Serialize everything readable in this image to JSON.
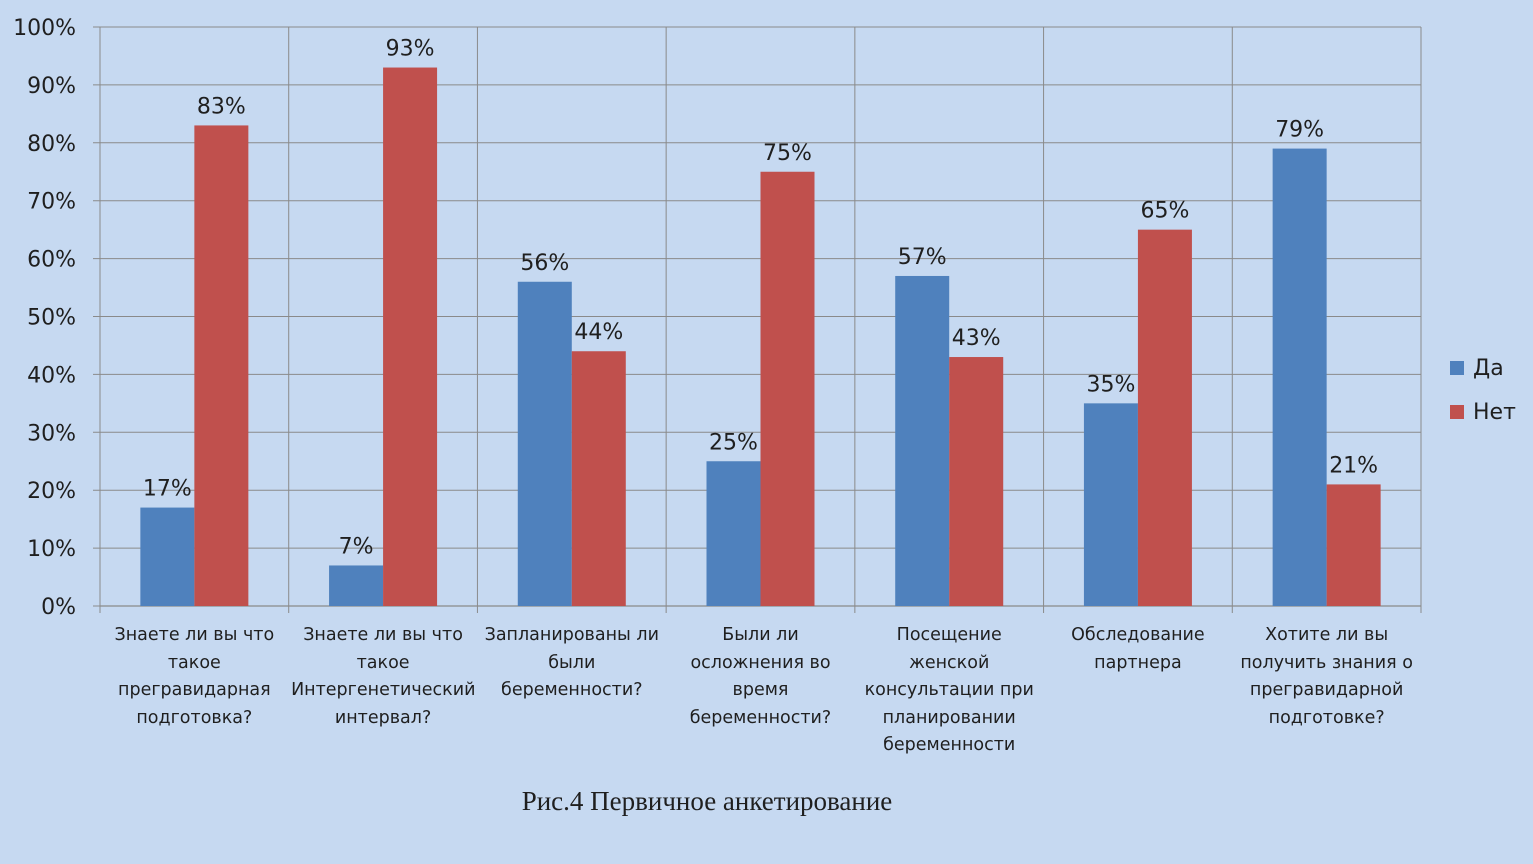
{
  "chart_data": {
    "type": "bar",
    "title": "",
    "xlabel": "",
    "ylabel": "",
    "ylim": [
      0,
      100
    ],
    "y_ticks": [
      "0%",
      "10%",
      "20%",
      "30%",
      "40%",
      "50%",
      "60%",
      "70%",
      "80%",
      "90%",
      "100%"
    ],
    "grid": true,
    "legend_position": "right",
    "categories": [
      "Знаете ли вы что такое прегравидарная подготовка?",
      "Знаете ли вы что такое Интергенетический интервал?",
      "Запланированы ли были беременности?",
      "Были ли осложнения во время беременности?",
      "Посещение женской консультации при планировании беременности",
      "Обследование партнера",
      "Хотите ли вы получить знания о прегравидарной подготовке?"
    ],
    "category_lines": [
      [
        "Знаете ли вы что",
        "такое",
        "прегравидарная",
        "подготовка?"
      ],
      [
        "Знаете ли вы что",
        "такое",
        "Интергенетический",
        "интервал?"
      ],
      [
        "Запланированы ли",
        "были",
        "беременности?"
      ],
      [
        "Были ли",
        "осложнения во",
        "время",
        "беременности?"
      ],
      [
        "Посещение",
        "женской",
        "консультации при",
        "планировании",
        "беременности"
      ],
      [
        "Обследование",
        "партнера"
      ],
      [
        "Хотите ли вы",
        "получить знания о",
        "прегравидарной",
        "подготовке?"
      ]
    ],
    "series": [
      {
        "name": "Да",
        "color": "#4f81bd",
        "values": [
          17,
          7,
          56,
          25,
          57,
          35,
          79
        ],
        "labels": [
          "17%",
          "7%",
          "56%",
          "25%",
          "57%",
          "35%",
          "79%"
        ]
      },
      {
        "name": "Нет",
        "color": "#c0504d",
        "values": [
          83,
          93,
          44,
          75,
          43,
          65,
          21
        ],
        "labels": [
          "83%",
          "93%",
          "44%",
          "75%",
          "43%",
          "65%",
          "21%"
        ]
      }
    ]
  },
  "caption": "Рис.4 Первичное анкетирование",
  "colors": {
    "background": "#c6d9f1",
    "gridline": "#8a8a8a",
    "text": "#1f1f1f"
  }
}
